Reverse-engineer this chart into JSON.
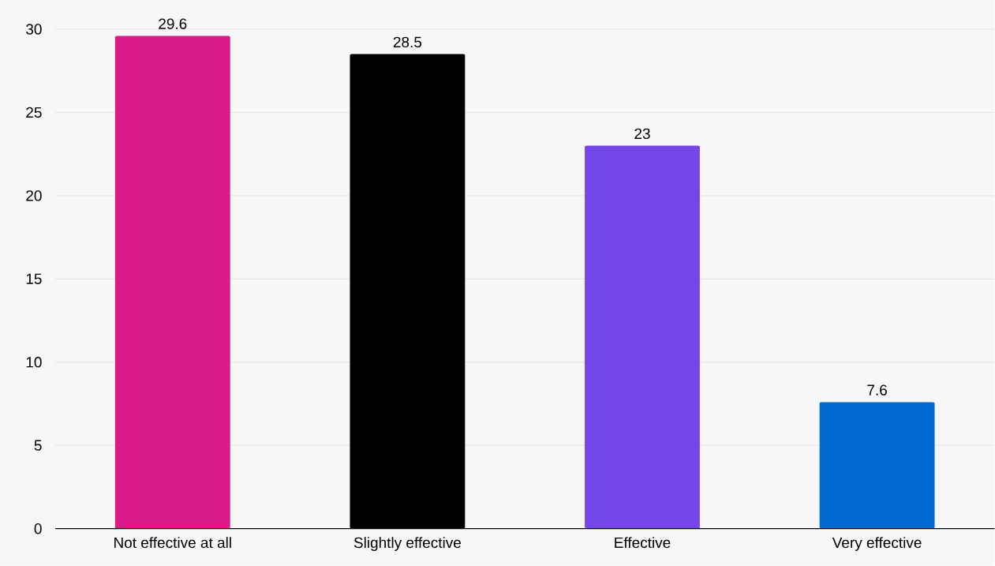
{
  "chart_data": {
    "type": "bar",
    "categories": [
      "Not effective at all",
      "Slightly effective",
      "Effective",
      "Very effective"
    ],
    "values": [
      29.6,
      28.5,
      23,
      7.6
    ],
    "colors": [
      "#d81b87",
      "#000000",
      "#7448e8",
      "#006ad1"
    ],
    "ylim": [
      0,
      30
    ],
    "yticks": [
      0,
      5,
      10,
      15,
      20,
      25,
      30
    ],
    "grid": "y",
    "data_labels": true
  }
}
